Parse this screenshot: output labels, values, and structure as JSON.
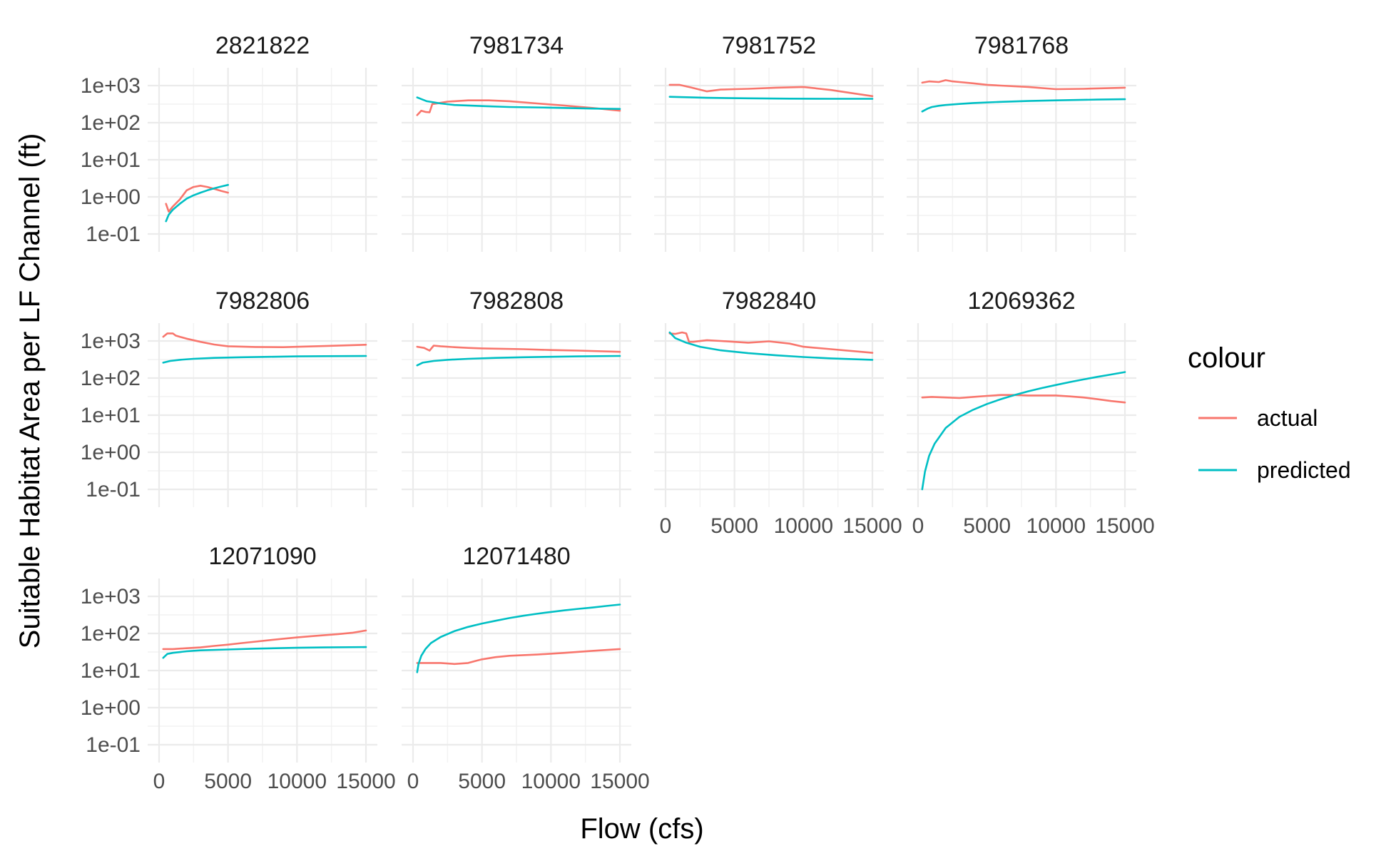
{
  "chart_data": {
    "type": "line",
    "facet_layout": "wrap, 4 columns",
    "xlabel": "Flow (cfs)",
    "ylabel": "Suitable Habitat Area per LF Channel (ft)",
    "x_scale": "linear",
    "y_scale": "log10",
    "xlim": [
      0,
      15000
    ],
    "ylim": [
      0.1,
      1000
    ],
    "x_ticks": [
      "0",
      "5000",
      "10000",
      "15000"
    ],
    "y_ticks": [
      "1e-01",
      "1e+00",
      "1e+01",
      "1e+02",
      "1e+03"
    ],
    "y_tick_values": [
      0.1,
      1,
      10,
      100,
      1000
    ],
    "x_tick_values": [
      0,
      5000,
      10000,
      15000
    ],
    "grid": true,
    "legend": {
      "title": "colour",
      "position": "right",
      "entries": [
        {
          "name": "actual",
          "color": "#F8766D"
        },
        {
          "name": "predicted",
          "color": "#00BFC4"
        }
      ]
    },
    "facets": [
      {
        "label": "2821822",
        "actual": {
          "x": [
            500,
            700,
            1000,
            1500,
            2000,
            2500,
            3000,
            3500,
            4000,
            4500,
            5000
          ],
          "y": [
            0.65,
            0.4,
            0.55,
            0.85,
            1.5,
            1.85,
            2.0,
            1.85,
            1.65,
            1.45,
            1.3
          ]
        },
        "predicted": {
          "x": [
            500,
            700,
            1000,
            1500,
            2000,
            2500,
            3000,
            3500,
            4000,
            4500,
            5000
          ],
          "y": [
            0.22,
            0.33,
            0.45,
            0.65,
            0.9,
            1.1,
            1.3,
            1.5,
            1.7,
            1.9,
            2.1
          ]
        }
      },
      {
        "label": "7981734",
        "actual": {
          "x": [
            300,
            600,
            900,
            1200,
            1400,
            1500,
            2500,
            4000,
            5500,
            7000,
            9000,
            11000,
            13000,
            15000
          ],
          "y": [
            160,
            210,
            195,
            190,
            320,
            320,
            370,
            400,
            400,
            380,
            330,
            290,
            250,
            210
          ]
        },
        "predicted": {
          "x": [
            300,
            1000,
            2000,
            3000,
            5000,
            7000,
            10000,
            13000,
            15000
          ],
          "y": [
            480,
            380,
            330,
            300,
            280,
            265,
            255,
            240,
            235
          ]
        }
      },
      {
        "label": "7981752",
        "actual": {
          "x": [
            300,
            1000,
            1800,
            3000,
            4000,
            5000,
            6000,
            8000,
            10000,
            12000,
            15000
          ],
          "y": [
            1050,
            1050,
            900,
            700,
            780,
            800,
            820,
            880,
            920,
            760,
            520
          ]
        },
        "predicted": {
          "x": [
            300,
            1000,
            3000,
            6000,
            9000,
            12000,
            15000
          ],
          "y": [
            500,
            490,
            470,
            455,
            445,
            440,
            440
          ]
        }
      },
      {
        "label": "7981768",
        "actual": {
          "x": [
            300,
            800,
            1500,
            2000,
            2500,
            3000,
            4000,
            5000,
            6000,
            8000,
            10000,
            12000,
            15000
          ],
          "y": [
            1200,
            1300,
            1250,
            1400,
            1300,
            1250,
            1150,
            1050,
            1000,
            920,
            800,
            820,
            880
          ]
        },
        "predicted": {
          "x": [
            300,
            700,
            1000,
            1500,
            2000,
            3000,
            4000,
            6000,
            8000,
            10000,
            13000,
            15000
          ],
          "y": [
            200,
            240,
            265,
            285,
            300,
            320,
            340,
            365,
            385,
            400,
            420,
            430
          ]
        }
      },
      {
        "label": "7982806",
        "actual": {
          "x": [
            300,
            600,
            1000,
            1200,
            1500,
            2000,
            3000,
            4000,
            5000,
            7000,
            9000,
            12000,
            15000
          ],
          "y": [
            1300,
            1600,
            1600,
            1400,
            1300,
            1150,
            950,
            800,
            720,
            690,
            680,
            730,
            790
          ]
        },
        "predicted": {
          "x": [
            300,
            800,
            1500,
            2500,
            4000,
            6000,
            8000,
            10000,
            12000,
            15000
          ],
          "y": [
            260,
            290,
            310,
            330,
            350,
            365,
            375,
            385,
            390,
            395
          ]
        }
      },
      {
        "label": "7982808",
        "actual": {
          "x": [
            300,
            800,
            1200,
            1500,
            2000,
            3000,
            4000,
            5000,
            6000,
            8000,
            10000,
            12000,
            15000
          ],
          "y": [
            700,
            650,
            550,
            750,
            720,
            680,
            650,
            630,
            620,
            600,
            570,
            550,
            510
          ]
        },
        "predicted": {
          "x": [
            300,
            700,
            1500,
            2500,
            4000,
            6000,
            8000,
            10000,
            12000,
            15000
          ],
          "y": [
            220,
            260,
            290,
            310,
            330,
            350,
            365,
            375,
            385,
            395
          ]
        }
      },
      {
        "label": "7982840",
        "actual": {
          "x": [
            300,
            700,
            1200,
            1500,
            1700,
            2000,
            3000,
            4000,
            5000,
            6000,
            7500,
            9000,
            10000,
            12000,
            15000
          ],
          "y": [
            1600,
            1550,
            1700,
            1600,
            950,
            950,
            1050,
            1000,
            950,
            900,
            980,
            850,
            700,
            600,
            480
          ]
        },
        "predicted": {
          "x": [
            300,
            700,
            1500,
            2500,
            4000,
            6000,
            8000,
            10000,
            12000,
            15000
          ],
          "y": [
            1700,
            1200,
            900,
            700,
            560,
            470,
            410,
            370,
            340,
            310
          ]
        }
      },
      {
        "label": "12069362",
        "actual": {
          "x": [
            300,
            1000,
            2000,
            3000,
            4000,
            5000,
            6000,
            7000,
            8000,
            9000,
            10000,
            11000,
            12000,
            13000,
            14000,
            15000
          ],
          "y": [
            30,
            31,
            30,
            29,
            31,
            33,
            35,
            35,
            34,
            34,
            34,
            32,
            30,
            27,
            24,
            22
          ]
        },
        "predicted": {
          "x": [
            300,
            500,
            800,
            1200,
            2000,
            3000,
            4000,
            5000,
            6000,
            7000,
            8000,
            9000,
            10000,
            11000,
            12000,
            13000,
            14000,
            15000
          ],
          "y": [
            0.1,
            0.3,
            0.8,
            1.7,
            4.5,
            9,
            14,
            20,
            27,
            35,
            44,
            54,
            65,
            78,
            92,
            108,
            125,
            145
          ]
        }
      },
      {
        "label": "12071090",
        "actual": {
          "x": [
            300,
            1000,
            2000,
            3000,
            4000,
            5000,
            6000,
            7000,
            8000,
            9000,
            10000,
            11000,
            12000,
            13000,
            14000,
            15000
          ],
          "y": [
            38,
            38,
            40,
            42,
            46,
            50,
            55,
            60,
            66,
            72,
            78,
            84,
            90,
            96,
            104,
            120
          ]
        },
        "predicted": {
          "x": [
            300,
            600,
            1000,
            2000,
            3000,
            5000,
            7000,
            10000,
            12000,
            15000
          ],
          "y": [
            22,
            28,
            30,
            33,
            35,
            37,
            39,
            41,
            42,
            43
          ]
        }
      },
      {
        "label": "12071480",
        "actual": {
          "x": [
            300,
            1000,
            2000,
            3000,
            4000,
            4500,
            5000,
            6000,
            7000,
            9000,
            11000,
            13000,
            15000
          ],
          "y": [
            16,
            16,
            16,
            15,
            16,
            18,
            20,
            23,
            25,
            27,
            30,
            34,
            38
          ]
        },
        "predicted": {
          "x": [
            300,
            400,
            600,
            900,
            1300,
            2000,
            3000,
            4000,
            5000,
            6000,
            7000,
            8000,
            9000,
            10000,
            11000,
            12000,
            13000,
            14000,
            15000
          ],
          "y": [
            9,
            15,
            25,
            38,
            55,
            80,
            115,
            150,
            185,
            220,
            260,
            300,
            340,
            380,
            420,
            460,
            500,
            550,
            600
          ]
        }
      }
    ]
  }
}
